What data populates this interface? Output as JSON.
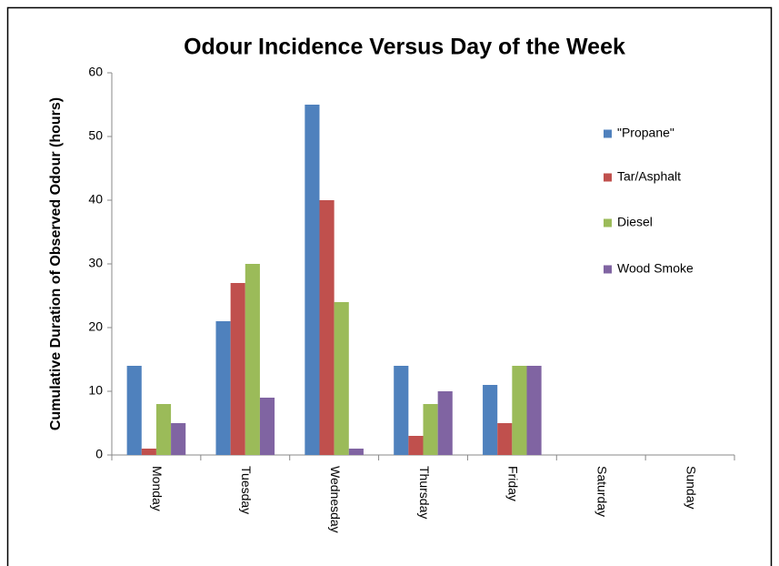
{
  "chart_data": {
    "type": "bar",
    "title": "Odour Incidence Versus Day of the Week",
    "y_label": "Cumulative Duration of Observed Odour (hours)",
    "categories": [
      "Monday",
      "Tuesday",
      "Wednesday",
      "Thursday",
      "Friday",
      "Saturday",
      "Sunday"
    ],
    "series": [
      {
        "name": "\"Propane\"",
        "color": "#4f81bd",
        "values": [
          14,
          21,
          55,
          14,
          11,
          null,
          null
        ]
      },
      {
        "name": "Tar/Asphalt",
        "color": "#c0504d",
        "values": [
          1,
          27,
          40,
          3,
          5,
          null,
          null
        ]
      },
      {
        "name": "Diesel",
        "color": "#9bbb59",
        "values": [
          8,
          30,
          24,
          8,
          14,
          null,
          null
        ]
      },
      {
        "name": "Wood Smoke",
        "color": "#8064a2",
        "values": [
          5,
          9,
          1,
          10,
          14,
          null,
          null
        ]
      }
    ],
    "ylim": [
      0,
      60
    ],
    "yticks": [
      0,
      10,
      20,
      30,
      40,
      50,
      60
    ],
    "grid": false,
    "legend": "right"
  }
}
